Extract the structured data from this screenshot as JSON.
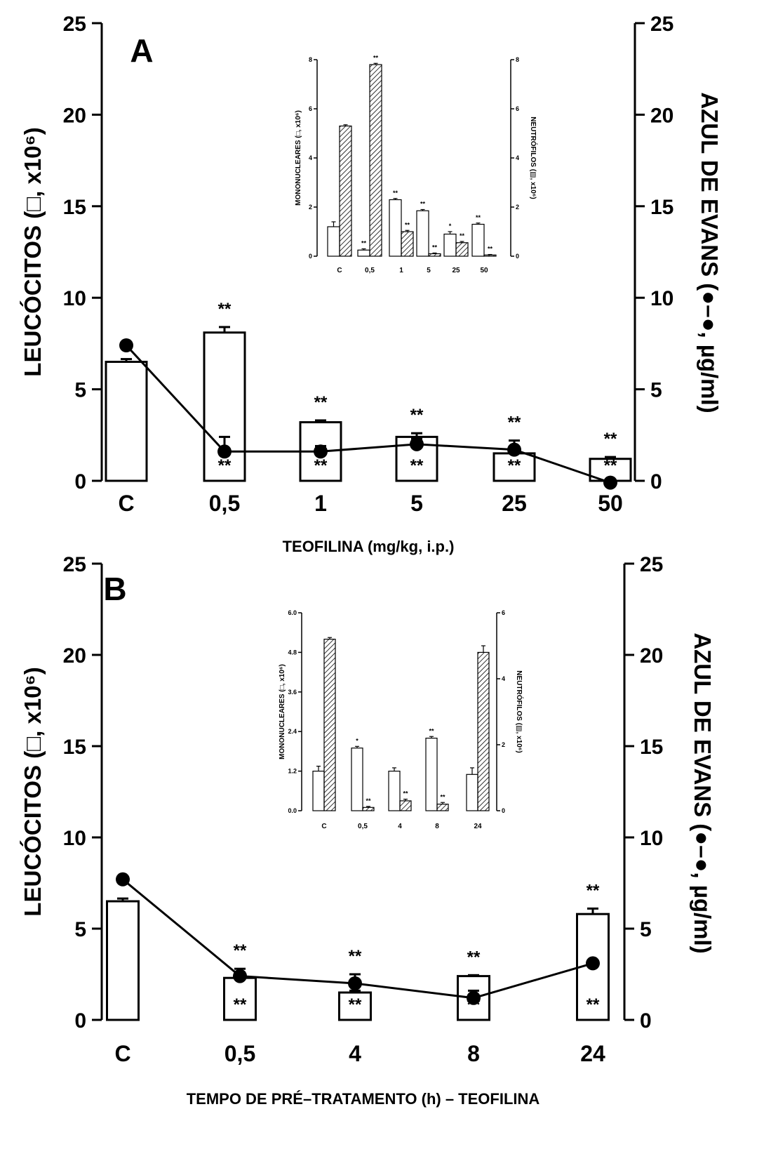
{
  "chart_data": [
    {
      "panel": "A",
      "type": "bar",
      "xlabel": "TEOFILINA (mg/kg, i.p.)",
      "ylabel": "LEUCÓCITOS (□, x10⁶)",
      "y2label": "AZUL DE EVANS (●–●, µg/ml)",
      "ylim": [
        0,
        25
      ],
      "y2lim": [
        0,
        25
      ],
      "yticks": [
        "0",
        "5",
        "10",
        "15",
        "20",
        "25"
      ],
      "categories": [
        "C",
        "0,5",
        "1",
        "5",
        "25",
        "50"
      ],
      "series": [
        {
          "kind": "bar",
          "values": [
            6.5,
            8.1,
            3.2,
            2.4,
            1.5,
            1.2
          ],
          "errors": [
            0.15,
            0.3,
            0.1,
            0.2,
            0.2,
            0.1
          ],
          "stars": [
            "",
            "**",
            "**",
            "**",
            "**",
            "**"
          ]
        },
        {
          "kind": "line",
          "values": [
            7.4,
            1.6,
            1.6,
            2.0,
            1.7,
            -0.1
          ],
          "errors": [
            0,
            0.8,
            0.3,
            0.3,
            0.5,
            0
          ],
          "stars": [
            "",
            "**",
            "**",
            "**",
            "**",
            "**"
          ]
        }
      ],
      "inset": {
        "ylabel": "MONONUCLEARES (□, x10⁶)",
        "y2label": "NEUTRÓFILOS (▨, x10⁶)",
        "ylim": [
          0,
          8
        ],
        "y2lim": [
          0,
          8
        ],
        "yticks": [
          "0",
          "2",
          "4",
          "6",
          "8"
        ],
        "y2ticks": [
          "0",
          "2",
          "4",
          "6",
          "8"
        ],
        "categories": [
          "C",
          "0,5",
          "1",
          "5",
          "25",
          "50"
        ],
        "mononucleares": [
          1.2,
          0.25,
          2.3,
          1.85,
          0.9,
          1.3
        ],
        "mono_err": [
          0.2,
          0.05,
          0.05,
          0.05,
          0.1,
          0.05
        ],
        "mono_stars": [
          "",
          "**",
          "**",
          "**",
          "*",
          "**"
        ],
        "neutrofilos": [
          5.3,
          7.8,
          1.0,
          0.1,
          0.55,
          0.05
        ],
        "neut_err": [
          0.05,
          0.05,
          0.05,
          0.03,
          0.05,
          0.02
        ],
        "neut_stars": [
          "",
          "**",
          "**",
          "**",
          "**",
          "**"
        ]
      }
    },
    {
      "panel": "B",
      "type": "bar",
      "xlabel": "TEMPO DE PRÉ–TRATAMENTO (h) – TEOFILINA",
      "ylabel": "LEUCÓCITOS (□, x10⁶)",
      "y2label": "AZUL DE EVANS (●–●, µg/ml)",
      "ylim": [
        0,
        25
      ],
      "y2lim": [
        0,
        25
      ],
      "yticks": [
        "0",
        "5",
        "10",
        "15",
        "20",
        "25"
      ],
      "categories": [
        "C",
        "0,5",
        "4",
        "8",
        "24"
      ],
      "series": [
        {
          "kind": "bar",
          "values": [
            6.5,
            2.3,
            1.5,
            2.4,
            5.8
          ],
          "errors": [
            0.15,
            0.3,
            0.1,
            0.05,
            0.3
          ],
          "stars": [
            "",
            "**",
            "**",
            "**",
            "**"
          ]
        },
        {
          "kind": "line",
          "values": [
            7.7,
            2.4,
            2.0,
            1.2,
            3.1
          ],
          "errors": [
            0,
            0.4,
            0.5,
            0.4,
            0
          ],
          "stars": [
            "",
            "**",
            "**",
            "**",
            "**"
          ]
        }
      ],
      "inset": {
        "ylabel": "MONONUCLEARES (□, x10⁶)",
        "y2label": "NEUTRÓFILOS (▨, x10⁶)",
        "ylim": [
          0,
          6
        ],
        "y2lim": [
          0,
          6
        ],
        "yticks": [
          "0.0",
          "1.2",
          "2.4",
          "3.6",
          "4.8",
          "6.0"
        ],
        "y2ticks": [
          "0",
          "2",
          "4",
          "6"
        ],
        "categories": [
          "C",
          "0,5",
          "4",
          "8",
          "24"
        ],
        "mononucleares": [
          1.2,
          1.9,
          1.2,
          2.2,
          1.1
        ],
        "mono_err": [
          0.15,
          0.05,
          0.1,
          0.05,
          0.2
        ],
        "mono_stars": [
          "",
          "*",
          "",
          "**",
          ""
        ],
        "neutrofilos": [
          5.2,
          0.1,
          0.3,
          0.2,
          4.8
        ],
        "neut_err": [
          0.05,
          0.03,
          0.05,
          0.05,
          0.2
        ],
        "neut_stars": [
          "",
          "**",
          "**",
          "**",
          ""
        ]
      }
    }
  ]
}
